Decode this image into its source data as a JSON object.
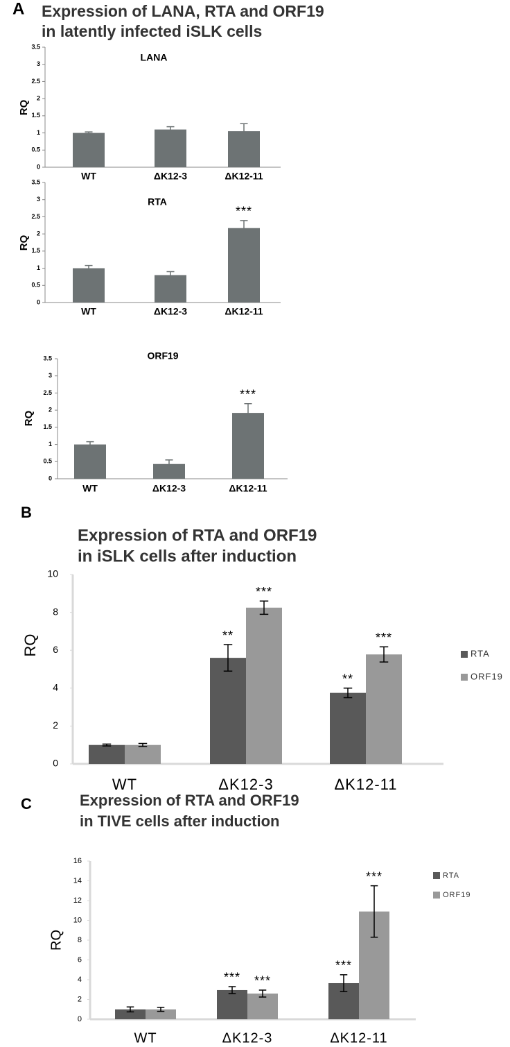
{
  "chart_data": [
    {
      "type": "bar",
      "panel": "A",
      "panel_title": [
        "Expression of LANA, RTA and ORF19",
        "in latently infected iSLK cells"
      ],
      "title": "LANA",
      "ylabel": "RQ",
      "categories": [
        "WT",
        "ΔK12-3",
        "ΔK12-11"
      ],
      "values": [
        1.0,
        1.1,
        1.05
      ],
      "errors": [
        0.03,
        0.08,
        0.22
      ],
      "annotations": [
        null,
        null,
        null
      ],
      "color": "#6d7374",
      "ylim": [
        0,
        3.5
      ],
      "yticks": [
        0,
        0.5,
        1,
        1.5,
        2,
        2.5,
        3,
        3.5
      ]
    },
    {
      "type": "bar",
      "title": "RTA",
      "ylabel": "RQ",
      "categories": [
        "WT",
        "ΔK12-3",
        "ΔK12-11"
      ],
      "values": [
        1.0,
        0.8,
        2.17
      ],
      "errors": [
        0.08,
        0.1,
        0.22
      ],
      "annotations": [
        null,
        null,
        "***"
      ],
      "color": "#6d7374",
      "ylim": [
        0,
        3.5
      ],
      "yticks": [
        0,
        0.5,
        1,
        1.5,
        2,
        2.5,
        3,
        3.5
      ]
    },
    {
      "type": "bar",
      "title": "ORF19",
      "ylabel": "RQ",
      "categories": [
        "WT",
        "ΔK12-3",
        "ΔK12-11"
      ],
      "values": [
        1.0,
        0.43,
        1.92
      ],
      "errors": [
        0.08,
        0.12,
        0.27
      ],
      "annotations": [
        null,
        null,
        "***"
      ],
      "color": "#6d7374",
      "ylim": [
        0,
        3.5
      ],
      "yticks": [
        0,
        0.5,
        1,
        1.5,
        2,
        2.5,
        3,
        3.5
      ]
    },
    {
      "type": "bar",
      "panel": "B",
      "panel_title": [
        "Expression of RTA and ORF19",
        "in iSLK cells after induction"
      ],
      "ylabel": "RQ",
      "categories": [
        "WT",
        "ΔK12-3",
        "ΔK12-11"
      ],
      "series": [
        {
          "name": "RTA",
          "color": "#595959",
          "values": [
            1.0,
            5.6,
            3.75
          ],
          "errors": [
            0.05,
            0.7,
            0.25
          ],
          "annotations": [
            null,
            "**",
            "**"
          ]
        },
        {
          "name": "ORF19",
          "color": "#999999",
          "values": [
            1.0,
            8.25,
            5.78
          ],
          "errors": [
            0.08,
            0.35,
            0.4
          ],
          "annotations": [
            null,
            "***",
            "***"
          ]
        }
      ],
      "ylim": [
        0,
        10
      ],
      "yticks": [
        0,
        2,
        4,
        6,
        8,
        10
      ],
      "legend": "right"
    },
    {
      "type": "bar",
      "panel": "C",
      "panel_title": [
        "Expression of RTA and ORF19",
        "in TIVE cells after induction"
      ],
      "ylabel": "RQ",
      "categories": [
        "WT",
        "ΔK12-3",
        "ΔK12-11"
      ],
      "series": [
        {
          "name": "RTA",
          "color": "#595959",
          "values": [
            1.0,
            2.95,
            3.65
          ],
          "errors": [
            0.25,
            0.35,
            0.85
          ],
          "annotations": [
            null,
            "***",
            "***"
          ]
        },
        {
          "name": "ORF19",
          "color": "#999999",
          "values": [
            1.0,
            2.6,
            10.9
          ],
          "errors": [
            0.2,
            0.35,
            2.6
          ],
          "annotations": [
            null,
            "***",
            "***"
          ]
        }
      ],
      "ylim": [
        0,
        16
      ],
      "yticks": [
        0,
        2,
        4,
        6,
        8,
        10,
        12,
        14,
        16
      ],
      "legend": "right"
    }
  ]
}
